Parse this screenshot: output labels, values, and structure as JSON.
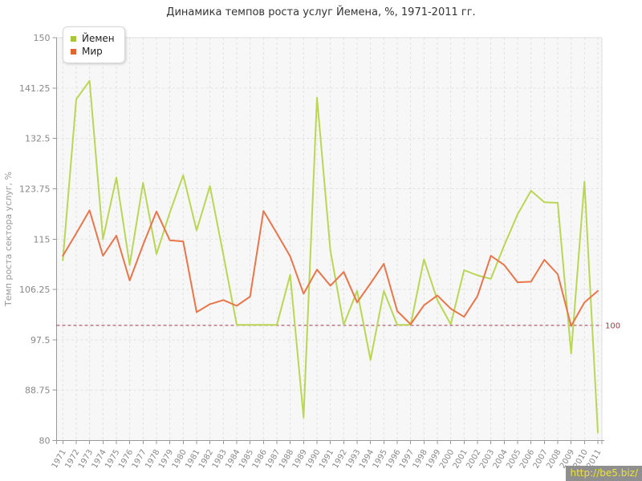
{
  "title": "Динамика темпов роста услуг Йемена, %, 1971-2011 гг.",
  "y_axis_title": "Темп роста сектора услуг, %",
  "watermark": {
    "text": "http://be5.biz/"
  },
  "reference_line": {
    "value": 100,
    "label": "100",
    "color": "#9e3a44"
  },
  "style_colors": {
    "plot_background": "#f7f7f7",
    "grid": "#e1e1e1",
    "plot_border": "#dcdcdc",
    "axis": "#999999",
    "tick_label": "#888888",
    "title_text": "#333333"
  },
  "chart_data": {
    "type": "line",
    "title": "Динамика темпов роста услуг Йемена, %, 1971-2011 гг.",
    "xlabel": "",
    "ylabel": "Темп роста сектора услуг, %",
    "ylim": [
      80,
      150
    ],
    "y_ticks": [
      150,
      141.25,
      132.5,
      123.75,
      115,
      106.25,
      97.5,
      88.75,
      80
    ],
    "grid": true,
    "legend_position": "top-left",
    "x": [
      1971,
      1972,
      1973,
      1974,
      1975,
      1976,
      1977,
      1978,
      1979,
      1980,
      1981,
      1982,
      1983,
      1984,
      1985,
      1986,
      1987,
      1988,
      1989,
      1990,
      1991,
      1992,
      1993,
      1994,
      1995,
      1996,
      1997,
      1998,
      1999,
      2000,
      2001,
      2002,
      2003,
      2004,
      2005,
      2006,
      2007,
      2008,
      2009,
      2010,
      2011
    ],
    "series": [
      {
        "name": "Йемен",
        "slug": "yemen",
        "color": "#b9d654",
        "marker_color": "#a6c832",
        "values": [
          111.3,
          139.3,
          142.5,
          115.0,
          125.7,
          110.5,
          124.8,
          112.4,
          119.6,
          126.1,
          116.5,
          124.2,
          112.3,
          100.1,
          100.1,
          100.1,
          100.1,
          108.8,
          84.0,
          139.6,
          113.0,
          100.1,
          106.0,
          94.0,
          106.0,
          100.1,
          100.1,
          111.5,
          104.4,
          100.2,
          109.6,
          108.7,
          108.1,
          113.9,
          119.3,
          123.4,
          121.4,
          121.3,
          95.1,
          125.0,
          81.4
        ]
      },
      {
        "name": "Мир",
        "slug": "world",
        "color": "#e8764a",
        "marker_color": "#e2662c",
        "values": [
          112.1,
          116.0,
          120.0,
          112.1,
          115.6,
          107.8,
          114.0,
          119.8,
          114.8,
          114.6,
          102.3,
          103.7,
          104.4,
          103.4,
          105.0,
          119.9,
          116.0,
          112.0,
          105.5,
          109.7,
          106.9,
          109.3,
          104.0,
          107.3,
          110.7,
          102.5,
          100.2,
          103.5,
          105.2,
          102.9,
          101.5,
          105.1,
          112.1,
          110.5,
          107.5,
          107.6,
          111.4,
          108.9,
          99.9,
          104.0,
          106.0
        ]
      }
    ]
  }
}
